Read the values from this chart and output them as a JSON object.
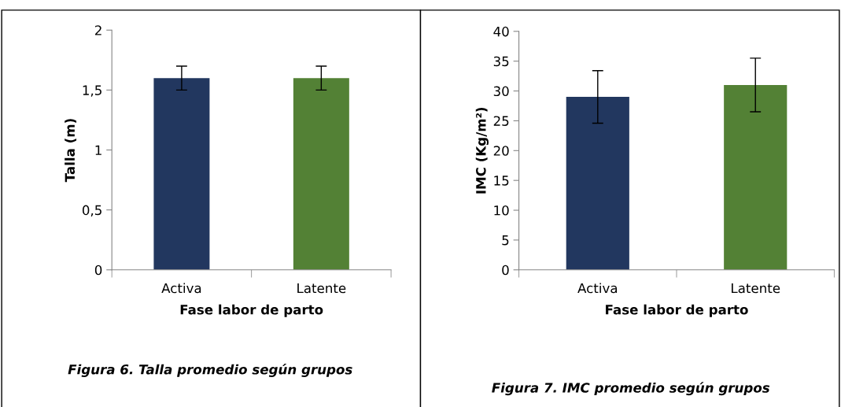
{
  "chart_data": [
    {
      "type": "bar",
      "categories": [
        "Activa",
        "Latente"
      ],
      "xlabel": "Fase labor de parto",
      "ylabel": "Talla (m)",
      "series": [
        {
          "values": [
            1.6,
            1.6
          ],
          "colors": [
            "#22375f",
            "#538135"
          ],
          "errors": [
            0.1,
            0.1
          ]
        }
      ],
      "ylim": [
        0,
        2
      ],
      "yticks": [
        0,
        {
          "value": 0.5,
          "label": "0,5"
        },
        1,
        {
          "value": 1.5,
          "label": "1,5"
        },
        2
      ],
      "grid": false,
      "legend": false,
      "annotations": [
        "Figura 6. Talla promedio según grupos"
      ]
    },
    {
      "type": "bar",
      "categories": [
        "Activa",
        "Latente"
      ],
      "xlabel": "Fase labor de parto",
      "ylabel": "IMC (Kg/m²)",
      "series": [
        {
          "values": [
            29,
            31
          ],
          "colors": [
            "#22375f",
            "#538135"
          ],
          "errors": [
            4.4,
            4.5
          ]
        }
      ],
      "ylim": [
        0,
        40
      ],
      "yticks": [
        0,
        5,
        10,
        15,
        20,
        25,
        30,
        35,
        40
      ],
      "grid": false,
      "legend": false,
      "annotations": [
        "Figura 7. IMC promedio según grupos"
      ]
    }
  ]
}
